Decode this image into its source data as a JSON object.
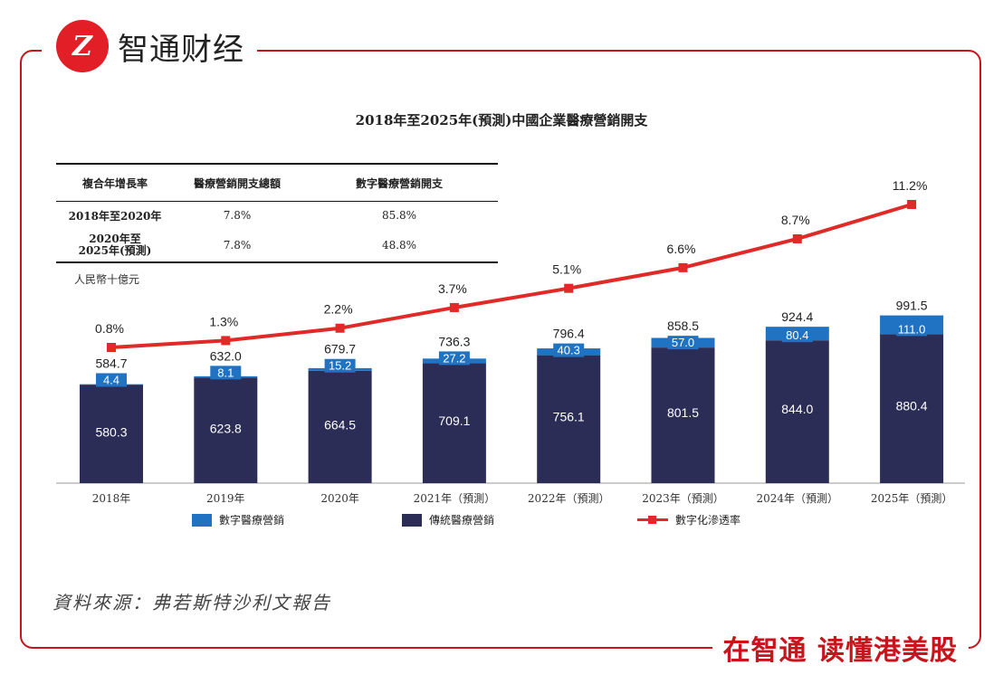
{
  "brand": {
    "logo_glyph": "Z",
    "name": "智通财经",
    "slogan": "在智通  读懂港美股",
    "color": "#c8141c"
  },
  "source_text": "資料來源：弗若斯特沙利文報告",
  "unit_label": "人民幣十億元",
  "cagr_table": {
    "headers": [
      "複合年增長率",
      "醫療營銷開支總額",
      "數字醫療營銷開支"
    ],
    "rows": [
      {
        "period": "2018年至2020年",
        "total": "7.8%",
        "digital": "85.8%"
      },
      {
        "period_line1": "2020年至",
        "period_line2": "2025年(預測)",
        "total": "7.8%",
        "digital": "48.8%"
      }
    ]
  },
  "chart_data": {
    "type": "bar",
    "subtype": "stacked-bar-with-line",
    "title": "2018年至2025年(預測)中國企業醫療營銷開支",
    "ylabel": "人民幣十億元",
    "categories": [
      "2018年",
      "2019年",
      "2020年",
      "2021年（預測）",
      "2022年（預測）",
      "2023年（預測）",
      "2024年（預測）",
      "2025年（預測）"
    ],
    "series": [
      {
        "name": "傳統醫療營銷",
        "color": "#2b2d57",
        "values": [
          580.3,
          623.8,
          664.5,
          709.1,
          756.1,
          801.5,
          844.0,
          880.4
        ]
      },
      {
        "name": "數字醫療營銷",
        "color": "#1f73c2",
        "values": [
          4.4,
          8.1,
          15.2,
          27.2,
          40.3,
          57.0,
          80.4,
          111.0
        ]
      }
    ],
    "totals": [
      584.7,
      632.0,
      679.7,
      736.3,
      796.4,
      858.5,
      924.4,
      991.5
    ],
    "line_series": {
      "name": "數字化滲透率",
      "color": "#e02a27",
      "values": [
        0.8,
        1.3,
        2.2,
        3.7,
        5.1,
        6.6,
        8.7,
        11.2
      ],
      "unit": "%"
    },
    "value_labels": {
      "traditional": [
        "580.3",
        "623.8",
        "664.5",
        "709.1",
        "756.1",
        "801.5",
        "844.0",
        "880.4"
      ],
      "digital": [
        "4.4",
        "8.1",
        "15.2",
        "27.2",
        "40.3",
        "57.0",
        "80.4",
        "111.0"
      ],
      "totals": [
        "584.7",
        "632.0",
        "679.7",
        "736.3",
        "796.4",
        "858.5",
        "924.4",
        "991.5"
      ],
      "rates": [
        "0.8%",
        "1.3%",
        "2.2%",
        "3.7%",
        "5.1%",
        "6.6%",
        "8.7%",
        "11.2%"
      ]
    },
    "legend": [
      "數字醫療營銷",
      "傳統醫療營銷",
      "數字化滲透率"
    ],
    "legend_position": "bottom",
    "grid": false
  }
}
